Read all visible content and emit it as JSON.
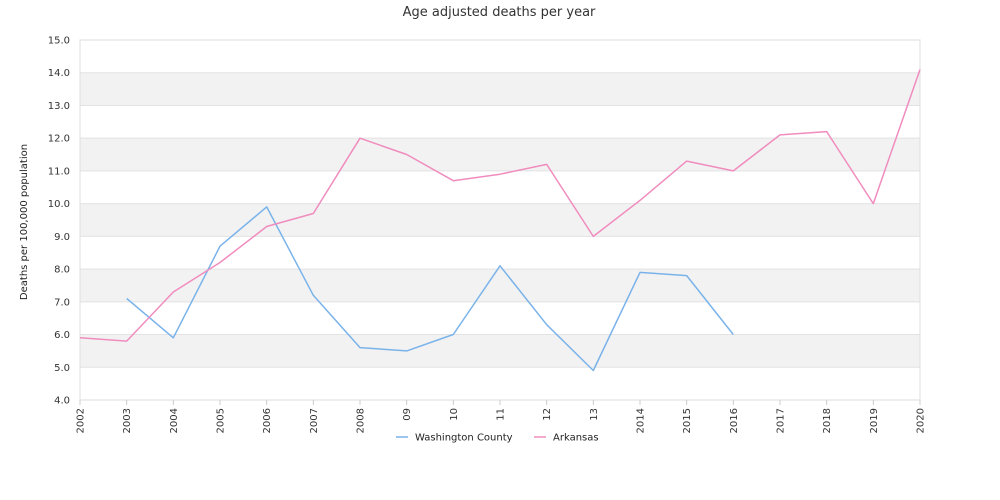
{
  "chart_data": {
    "type": "line",
    "title": "Age adjusted deaths per year",
    "xlabel": "",
    "ylabel": "Deaths per 100,000 population",
    "categories": [
      "2002",
      "2003",
      "2004",
      "2005",
      "2006",
      "2007",
      "2008",
      "09",
      "10",
      "11",
      "12",
      "13",
      "2014",
      "2015",
      "2016",
      "2017",
      "2018",
      "2019",
      "2020"
    ],
    "ylim": [
      4.0,
      15.0
    ],
    "yticks": [
      "4.0",
      "5.0",
      "6.0",
      "7.0",
      "8.0",
      "9.0",
      "10.0",
      "11.0",
      "12.0",
      "13.0",
      "14.0",
      "15.0"
    ],
    "grid": "horizontal alternating bands",
    "legend_position": "bottom",
    "series": [
      {
        "name": "Washington County",
        "color": "#7ab3ea",
        "values": [
          null,
          7.1,
          5.9,
          8.7,
          9.9,
          7.2,
          5.6,
          5.5,
          6.0,
          8.1,
          6.3,
          4.9,
          7.9,
          7.8,
          6.0,
          null,
          null,
          null,
          null
        ]
      },
      {
        "name": "Arkansas",
        "color": "#f08cbe",
        "values": [
          5.9,
          5.8,
          7.3,
          8.2,
          9.3,
          9.7,
          12.0,
          11.5,
          10.7,
          10.9,
          11.2,
          9.0,
          10.1,
          11.3,
          11.0,
          12.1,
          12.2,
          10.0,
          14.1
        ]
      }
    ]
  }
}
